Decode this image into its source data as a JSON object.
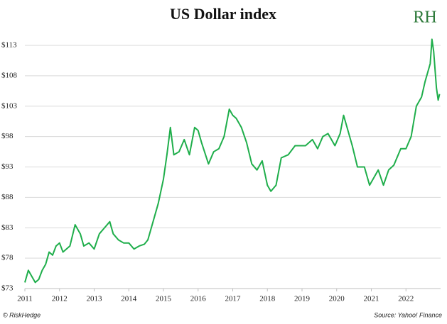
{
  "chart_data": {
    "type": "line",
    "title": "US Dollar index",
    "logo": "RH",
    "footer_left": "© RiskHedge",
    "footer_right": "Source: Yahoo! Finance",
    "xlim": [
      2011,
      2023
    ],
    "xticks": [
      2011,
      2012,
      2013,
      2014,
      2015,
      2016,
      2017,
      2018,
      2019,
      2020,
      2021,
      2022
    ],
    "ylim": [
      73,
      113
    ],
    "yticks": [
      {
        "value": 73,
        "label": "$73"
      },
      {
        "value": 78,
        "label": "$78"
      },
      {
        "value": 83,
        "label": "$83"
      },
      {
        "value": 88,
        "label": "$88"
      },
      {
        "value": 93,
        "label": "$93"
      },
      {
        "value": 98,
        "label": "$98"
      },
      {
        "value": 103,
        "label": "$103"
      },
      {
        "value": 108,
        "label": "$108"
      },
      {
        "value": 113,
        "label": "$113"
      }
    ],
    "grid": true,
    "series": [
      {
        "name": "US Dollar index",
        "color": "#1fae4b",
        "x": [
          2011.0,
          2011.1,
          2011.2,
          2011.3,
          2011.4,
          2011.5,
          2011.6,
          2011.7,
          2011.8,
          2011.9,
          2012.0,
          2012.1,
          2012.3,
          2012.45,
          2012.6,
          2012.7,
          2012.85,
          2013.0,
          2013.15,
          2013.3,
          2013.45,
          2013.55,
          2013.7,
          2013.85,
          2014.0,
          2014.15,
          2014.3,
          2014.45,
          2014.55,
          2014.7,
          2014.85,
          2015.0,
          2015.1,
          2015.2,
          2015.3,
          2015.45,
          2015.6,
          2015.75,
          2015.9,
          2016.0,
          2016.1,
          2016.3,
          2016.45,
          2016.6,
          2016.75,
          2016.9,
          2017.0,
          2017.1,
          2017.25,
          2017.4,
          2017.55,
          2017.7,
          2017.85,
          2018.0,
          2018.1,
          2018.25,
          2018.4,
          2018.6,
          2018.8,
          2018.95,
          2019.1,
          2019.3,
          2019.45,
          2019.6,
          2019.75,
          2019.95,
          2020.1,
          2020.2,
          2020.3,
          2020.45,
          2020.6,
          2020.8,
          2020.95,
          2021.0,
          2021.2,
          2021.35,
          2021.5,
          2021.65,
          2021.85,
          2022.0,
          2022.15,
          2022.3,
          2022.45,
          2022.55,
          2022.7,
          2022.75,
          2022.8,
          2022.88,
          2022.93,
          2022.97
        ],
        "values": [
          74,
          76,
          75,
          74,
          74.5,
          76,
          77,
          79,
          78.5,
          80,
          80.5,
          79,
          80,
          83.5,
          82,
          80,
          80.5,
          79.5,
          82,
          83,
          84,
          82,
          81,
          80.5,
          80.5,
          79.5,
          80,
          80.3,
          81,
          84,
          87,
          91,
          95,
          99.5,
          95,
          95.5,
          97.5,
          95,
          99.5,
          99,
          97,
          93.5,
          95.5,
          96,
          98,
          102.5,
          101.5,
          101,
          99.5,
          97,
          93.5,
          92.5,
          94,
          90,
          89,
          90,
          94.5,
          95,
          96.5,
          96.5,
          96.5,
          97.5,
          96,
          98,
          98.5,
          96.5,
          98.5,
          101.5,
          99.5,
          96.5,
          93,
          93,
          90,
          90.5,
          92.5,
          90,
          92.5,
          93.3,
          96,
          96,
          98,
          103,
          104.5,
          107,
          110,
          114,
          112,
          106,
          104,
          105
        ]
      }
    ]
  }
}
